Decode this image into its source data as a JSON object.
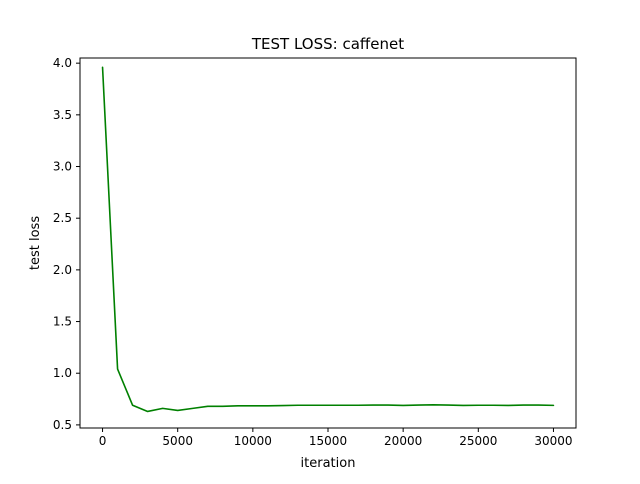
{
  "chart_data": {
    "type": "line",
    "title": "TEST LOSS: caffenet",
    "xlabel": "iteration",
    "ylabel": "test loss",
    "xlim": [
      -1500,
      31500
    ],
    "ylim": [
      0.47,
      4.05
    ],
    "x_ticks": [
      0,
      5000,
      10000,
      15000,
      20000,
      25000,
      30000
    ],
    "x_tick_labels": [
      "0",
      "5000",
      "10000",
      "15000",
      "20000",
      "25000",
      "30000"
    ],
    "y_ticks": [
      0.5,
      1.0,
      1.5,
      2.0,
      2.5,
      3.0,
      3.5,
      4.0
    ],
    "y_tick_labels": [
      "0.5",
      "1.0",
      "1.5",
      "2.0",
      "2.5",
      "3.0",
      "3.5",
      "4.0"
    ],
    "grid": false,
    "legend": "none",
    "series": [
      {
        "color": "#008000",
        "x": [
          0,
          1000,
          2000,
          3000,
          4000,
          5000,
          6000,
          7000,
          8000,
          9000,
          10000,
          11000,
          12000,
          13000,
          14000,
          15000,
          16000,
          17000,
          18000,
          19000,
          20000,
          21000,
          22000,
          23000,
          24000,
          25000,
          26000,
          27000,
          28000,
          29000,
          30000
        ],
        "y": [
          3.96,
          1.04,
          0.69,
          0.63,
          0.66,
          0.64,
          0.66,
          0.68,
          0.68,
          0.685,
          0.685,
          0.685,
          0.687,
          0.69,
          0.69,
          0.69,
          0.69,
          0.69,
          0.692,
          0.692,
          0.688,
          0.692,
          0.694,
          0.692,
          0.688,
          0.69,
          0.69,
          0.688,
          0.692,
          0.692,
          0.689
        ]
      }
    ]
  }
}
